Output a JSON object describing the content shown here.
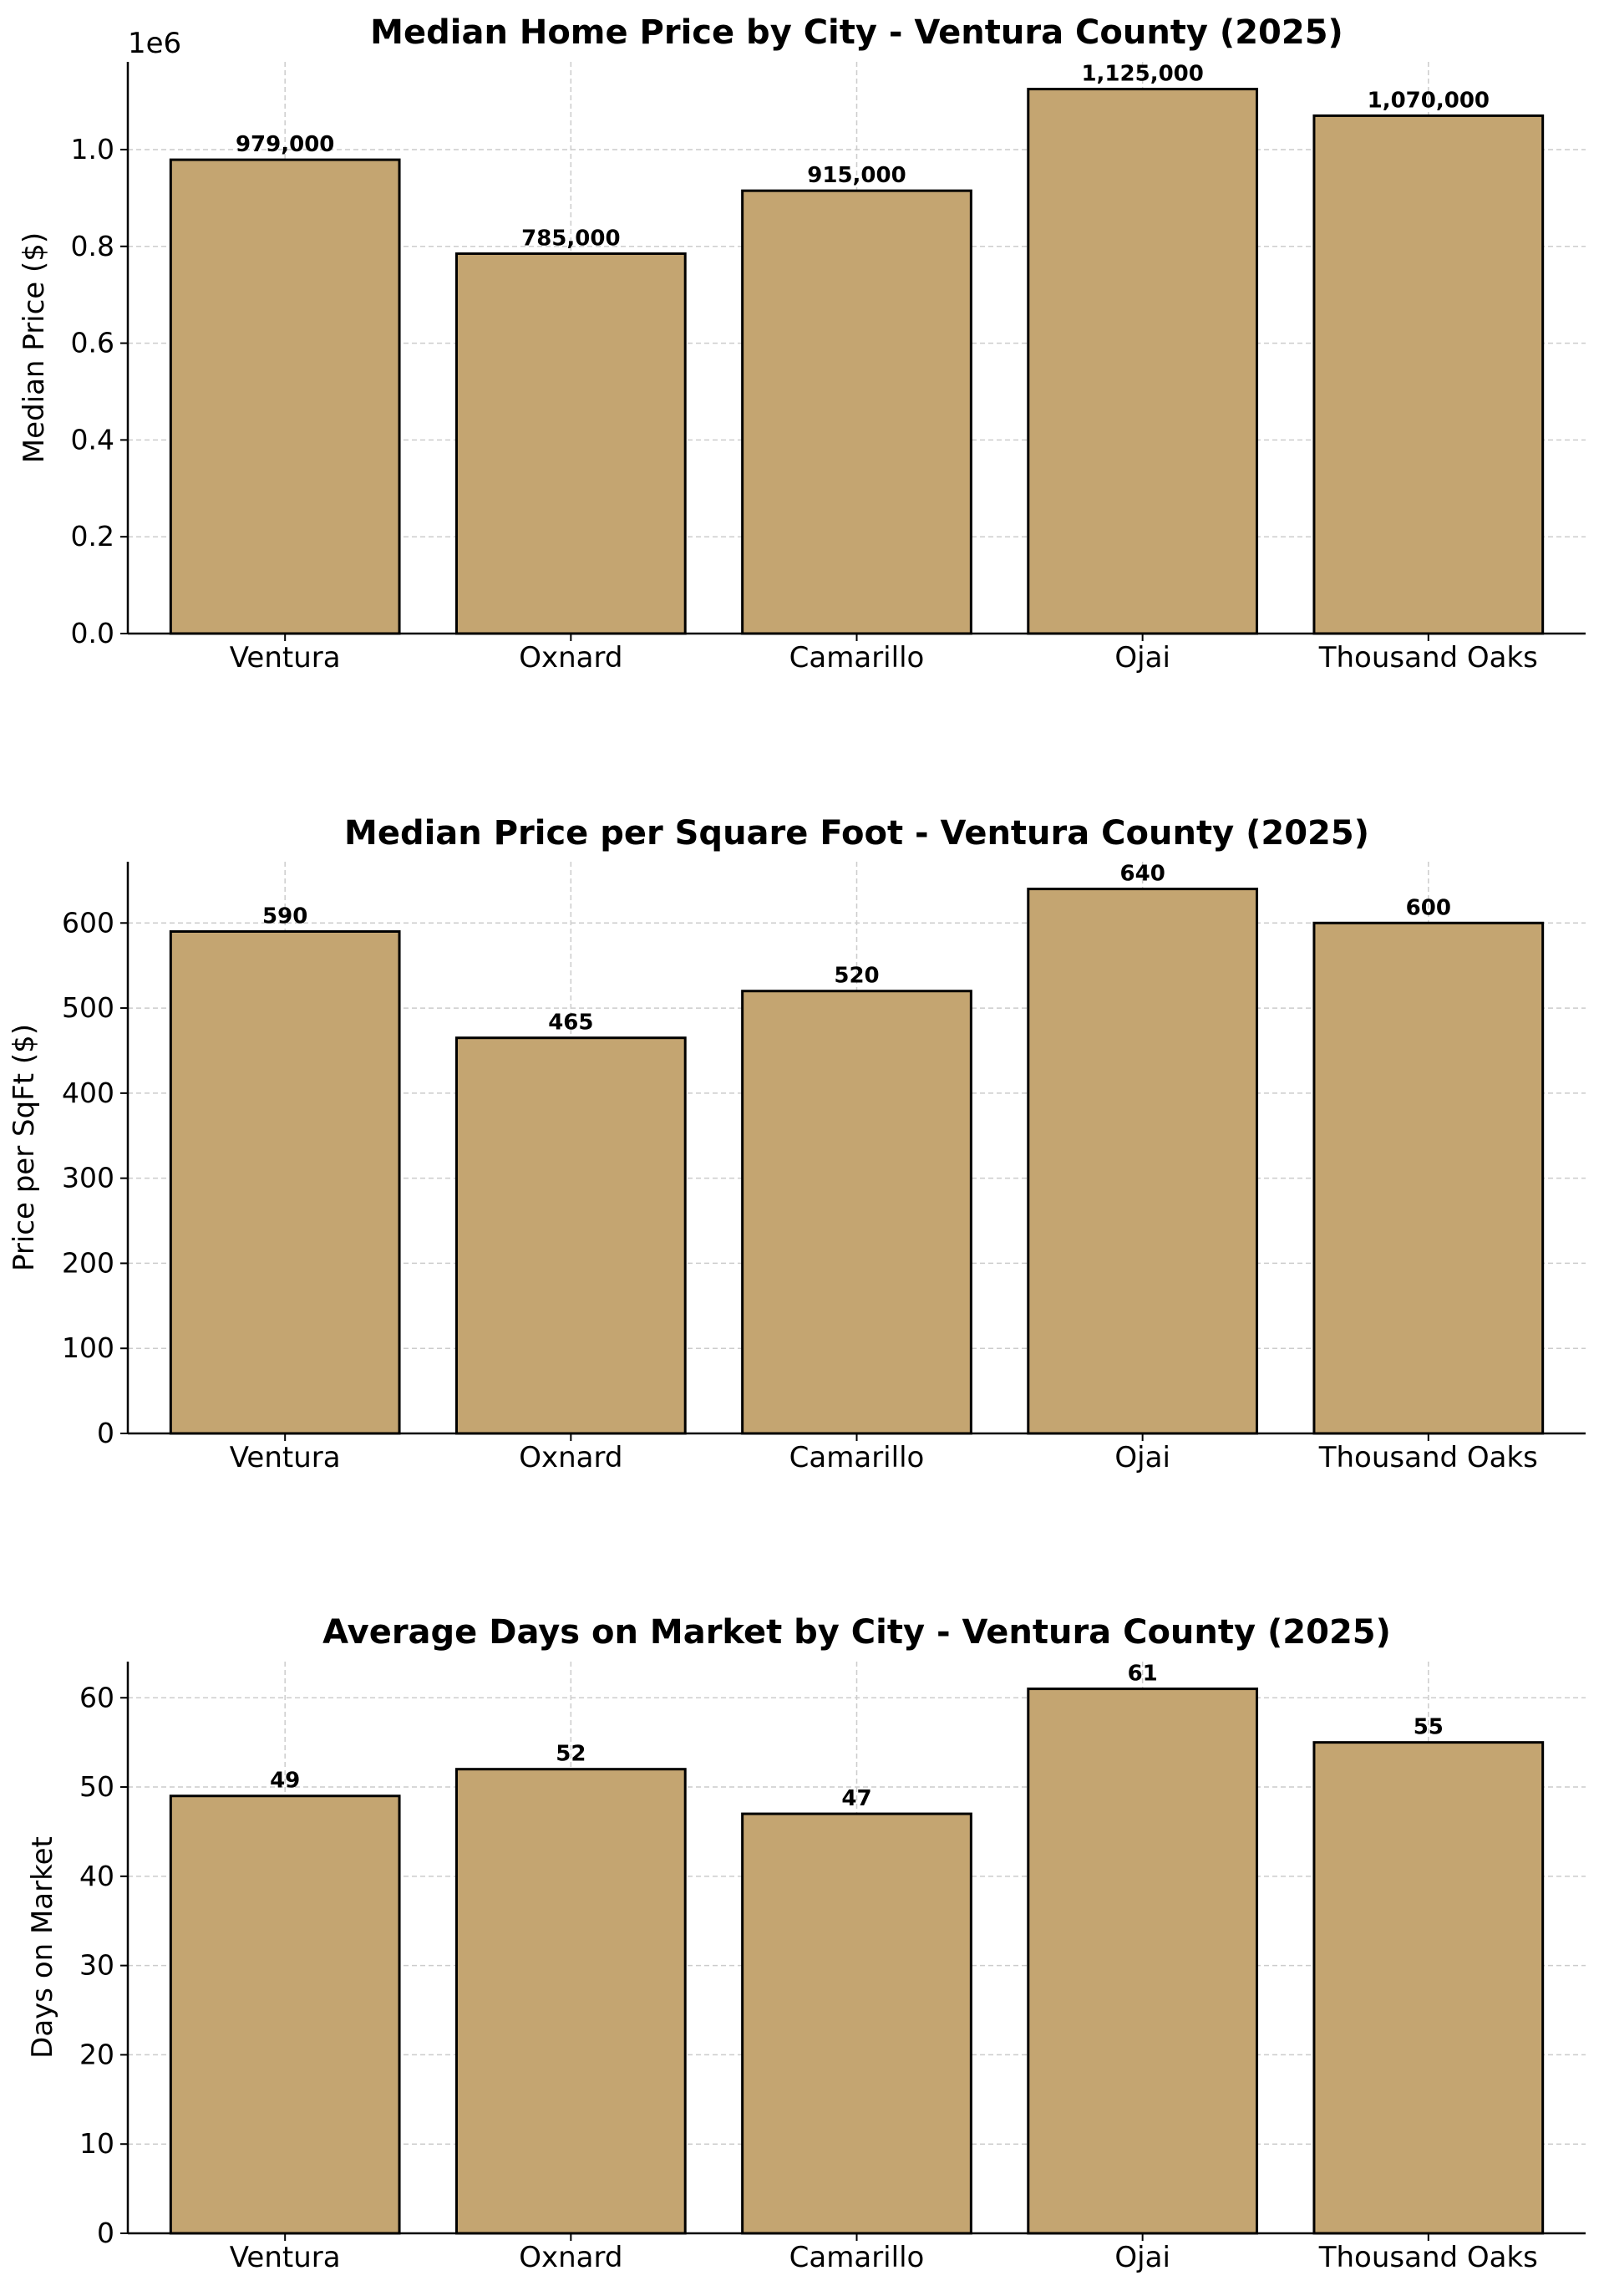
{
  "chart_data": [
    {
      "type": "bar",
      "title": "Median Home Price by City - Ventura County (2025)",
      "xlabel": "",
      "ylabel": "Median Price ($)",
      "y_offset_label": "1e6",
      "categories": [
        "Ventura",
        "Oxnard",
        "Camarillo",
        "Ojai",
        "Thousand Oaks"
      ],
      "values": [
        979000,
        785000,
        915000,
        1125000,
        1070000
      ],
      "value_labels": [
        "979,000",
        "785,000",
        "915,000",
        "1,125,000",
        "1,070,000"
      ],
      "ylim": [
        0,
        1181250
      ],
      "yticks": [
        0,
        200000,
        400000,
        600000,
        800000,
        1000000
      ],
      "ytick_labels": [
        "0.0",
        "0.2",
        "0.4",
        "0.6",
        "0.8",
        "1.0"
      ],
      "grid": true,
      "bar_color": "#c4a571",
      "edge_color": "#000000"
    },
    {
      "type": "bar",
      "title": "Median Price per Square Foot - Ventura County (2025)",
      "xlabel": "",
      "ylabel": "Price per SqFt ($)",
      "categories": [
        "Ventura",
        "Oxnard",
        "Camarillo",
        "Ojai",
        "Thousand Oaks"
      ],
      "values": [
        590,
        465,
        520,
        640,
        600
      ],
      "value_labels": [
        "590",
        "465",
        "520",
        "640",
        "600"
      ],
      "ylim": [
        0,
        672
      ],
      "yticks": [
        0,
        100,
        200,
        300,
        400,
        500,
        600
      ],
      "ytick_labels": [
        "0",
        "100",
        "200",
        "300",
        "400",
        "500",
        "600"
      ],
      "grid": true,
      "bar_color": "#c4a571",
      "edge_color": "#000000"
    },
    {
      "type": "bar",
      "title": "Average Days on Market by City - Ventura County (2025)",
      "xlabel": "",
      "ylabel": "Days on Market",
      "categories": [
        "Ventura",
        "Oxnard",
        "Camarillo",
        "Ojai",
        "Thousand Oaks"
      ],
      "values": [
        49,
        52,
        47,
        61,
        55
      ],
      "value_labels": [
        "49",
        "52",
        "47",
        "61",
        "55"
      ],
      "ylim": [
        0,
        64.05
      ],
      "yticks": [
        0,
        10,
        20,
        30,
        40,
        50,
        60
      ],
      "ytick_labels": [
        "0",
        "10",
        "20",
        "30",
        "40",
        "50",
        "60"
      ],
      "grid": true,
      "bar_color": "#c4a571",
      "edge_color": "#000000"
    }
  ]
}
